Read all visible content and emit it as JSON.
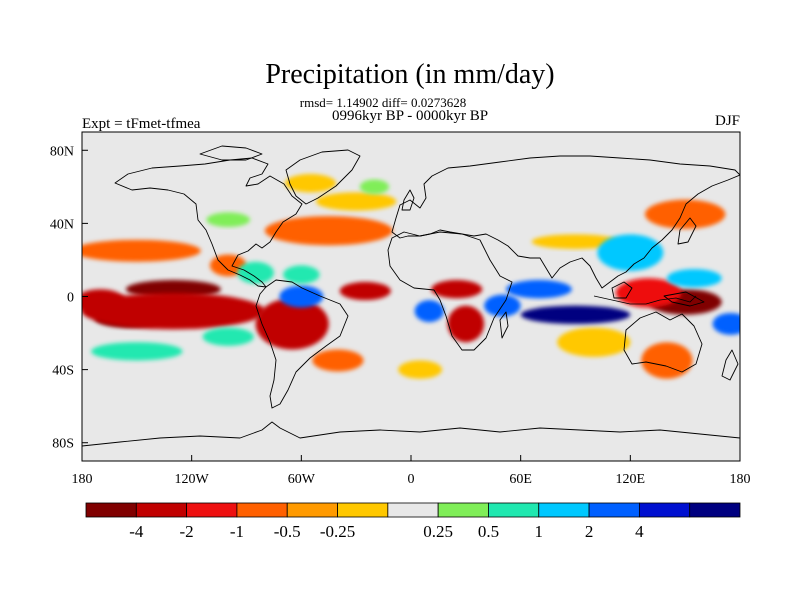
{
  "chart_data": {
    "type": "heatmap",
    "title": "Precipitation (in mm/day)",
    "stats": "rmsd= 1.14902 diff= 0.0273628",
    "subtitle": "0996kyr BP - 0000kyr BP",
    "left_label": "Expt = tFmet-tfmea",
    "right_label": "DJF",
    "x_range": [
      -180,
      180
    ],
    "y_range": [
      -90,
      90
    ],
    "x_ticks": [
      {
        "value": -180,
        "label": "180"
      },
      {
        "value": -120,
        "label": "120W"
      },
      {
        "value": -60,
        "label": "60W"
      },
      {
        "value": 0,
        "label": "0"
      },
      {
        "value": 60,
        "label": "60E"
      },
      {
        "value": 120,
        "label": "120E"
      },
      {
        "value": 180,
        "label": "180"
      }
    ],
    "y_ticks": [
      {
        "value": 80,
        "label": "80N"
      },
      {
        "value": 40,
        "label": "40N"
      },
      {
        "value": 0,
        "label": "0"
      },
      {
        "value": -40,
        "label": "40S"
      },
      {
        "value": -80,
        "label": "80S"
      }
    ],
    "colorbar": {
      "colors": [
        "#800000",
        "#c00000",
        "#ee1010",
        "#ff6000",
        "#ff9a00",
        "#ffc800",
        "#e8e8e8",
        "#80ee58",
        "#20e8b0",
        "#00c8ff",
        "#0060ff",
        "#0010d0",
        "#000080"
      ],
      "labels": [
        "-4",
        "-2",
        "-1",
        "-0.5",
        "-0.25",
        "0.25",
        "0.5",
        "1",
        "2",
        "4"
      ]
    },
    "anomalies": [
      {
        "lon": -130,
        "lat": 4,
        "level": -4,
        "rx": 26,
        "ry": 5
      },
      {
        "lon": -155,
        "lat": -12,
        "level": -4,
        "rx": 18,
        "ry": 5
      },
      {
        "lon": -130,
        "lat": -8,
        "level": -2,
        "rx": 50,
        "ry": 10
      },
      {
        "lon": -170,
        "lat": -3,
        "level": -2,
        "rx": 14,
        "ry": 7
      },
      {
        "lon": -65,
        "lat": -15,
        "level": -2,
        "rx": 20,
        "ry": 14
      },
      {
        "lon": -25,
        "lat": 3,
        "level": -2,
        "rx": 14,
        "ry": 5
      },
      {
        "lon": 30,
        "lat": -15,
        "level": -2,
        "rx": 10,
        "ry": 10
      },
      {
        "lon": 25,
        "lat": 4,
        "level": -2,
        "rx": 14,
        "ry": 5
      },
      {
        "lon": 150,
        "lat": -3,
        "level": -4,
        "rx": 20,
        "ry": 7
      },
      {
        "lon": 130,
        "lat": 2,
        "level": -1,
        "rx": 18,
        "ry": 8
      },
      {
        "lon": -150,
        "lat": 25,
        "level": -0.5,
        "rx": 35,
        "ry": 6
      },
      {
        "lon": -100,
        "lat": 17,
        "level": -0.5,
        "rx": 10,
        "ry": 6
      },
      {
        "lon": -45,
        "lat": 36,
        "level": -0.5,
        "rx": 35,
        "ry": 8
      },
      {
        "lon": -55,
        "lat": 62,
        "level": -0.25,
        "rx": 14,
        "ry": 5
      },
      {
        "lon": -30,
        "lat": 52,
        "level": -0.25,
        "rx": 22,
        "ry": 5
      },
      {
        "lon": 90,
        "lat": 30,
        "level": -0.25,
        "rx": 24,
        "ry": 4
      },
      {
        "lon": 150,
        "lat": 45,
        "level": -0.5,
        "rx": 22,
        "ry": 8
      },
      {
        "lon": 140,
        "lat": -35,
        "level": -0.5,
        "rx": 14,
        "ry": 10
      },
      {
        "lon": 100,
        "lat": -25,
        "level": -0.25,
        "rx": 20,
        "ry": 8
      },
      {
        "lon": -40,
        "lat": -35,
        "level": -0.5,
        "rx": 14,
        "ry": 6
      },
      {
        "lon": 5,
        "lat": -40,
        "level": -0.25,
        "rx": 12,
        "ry": 5
      },
      {
        "lon": -100,
        "lat": -22,
        "level": 0.5,
        "rx": 14,
        "ry": 5
      },
      {
        "lon": 70,
        "lat": 4,
        "level": 2,
        "rx": 18,
        "ry": 5
      },
      {
        "lon": 90,
        "lat": -10,
        "level": 4,
        "rx": 30,
        "ry": 5
      },
      {
        "lon": 50,
        "lat": -5,
        "level": 2,
        "rx": 10,
        "ry": 6
      },
      {
        "lon": -60,
        "lat": 0,
        "level": 2,
        "rx": 12,
        "ry": 6
      },
      {
        "lon": 10,
        "lat": -8,
        "level": 2,
        "rx": 8,
        "ry": 6
      },
      {
        "lon": 120,
        "lat": 24,
        "level": 1,
        "rx": 18,
        "ry": 10
      },
      {
        "lon": 175,
        "lat": -15,
        "level": 2,
        "rx": 10,
        "ry": 6
      },
      {
        "lon": -150,
        "lat": -30,
        "level": 0.5,
        "rx": 25,
        "ry": 5
      },
      {
        "lon": -85,
        "lat": 13,
        "level": 0.5,
        "rx": 10,
        "ry": 6
      },
      {
        "lon": -60,
        "lat": 12,
        "level": 0.5,
        "rx": 10,
        "ry": 5
      },
      {
        "lon": -100,
        "lat": 42,
        "level": 0.25,
        "rx": 12,
        "ry": 4
      },
      {
        "lon": 155,
        "lat": 10,
        "level": 1,
        "rx": 15,
        "ry": 5
      },
      {
        "lon": -20,
        "lat": 60,
        "level": 0.25,
        "rx": 8,
        "ry": 4
      }
    ]
  }
}
